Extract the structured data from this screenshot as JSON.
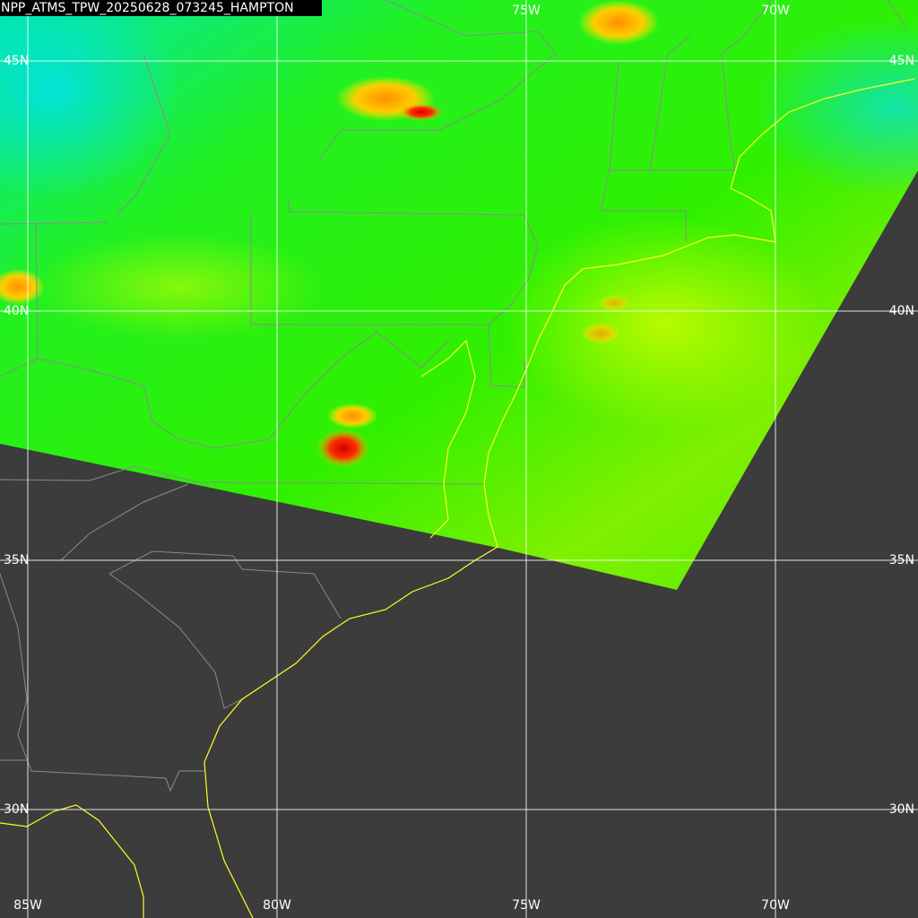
{
  "title": "NPP_ATMS_TPW_20250628_073245_HAMPTON",
  "top_labels": [
    "75W",
    "70W"
  ],
  "bottom_labels": [
    "85W",
    "80W",
    "75W",
    "70W"
  ],
  "left_labels": [
    "45N",
    "40N",
    "35N",
    "30N"
  ],
  "right_labels": [
    "45N",
    "40N",
    "35N",
    "30N"
  ]
}
